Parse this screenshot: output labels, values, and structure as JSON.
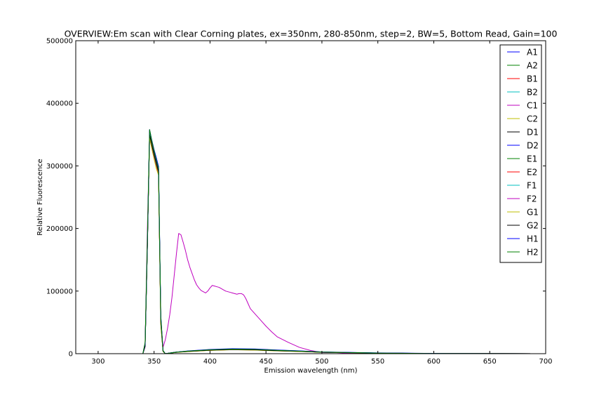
{
  "colors": {
    "A1": "#0000ff",
    "A2": "#008000",
    "B1": "#ff0000",
    "B2": "#00bfbf",
    "C1": "#bf00bf",
    "C2": "#bfbf00",
    "D1": "#000000",
    "D2": "#0000ff",
    "E1": "#008000",
    "E2": "#ff0000",
    "F1": "#00bfbf",
    "F2": "#bf00bf",
    "G1": "#bfbf00",
    "G2": "#000000",
    "H1": "#0000ff",
    "H2": "#008000"
  },
  "chart_data": {
    "type": "line",
    "title": "OVERVIEW:Em scan with Clear Corning plates, ex=350nm, 280-850nm, step=2, BW=5, Bottom Read, Gain=100",
    "xlabel": "Emission wavelength (nm)",
    "ylabel": "Relative Fluorescence",
    "xlim": [
      280,
      700
    ],
    "ylim": [
      0,
      500000
    ],
    "xticks": [
      "300",
      "350",
      "400",
      "450",
      "500",
      "550",
      "600",
      "650",
      "700"
    ],
    "yticks": [
      "0",
      "100000",
      "200000",
      "300000",
      "400000",
      "500000"
    ],
    "grid": false,
    "legend_position": "top-right",
    "series": [
      {
        "name": "A1",
        "x": [
          280,
          340,
          342,
          344,
          346,
          348,
          350,
          352,
          354,
          356,
          358,
          360,
          370,
          380,
          400,
          420,
          440,
          460,
          480,
          500,
          550,
          600,
          700
        ],
        "y": [
          0,
          0,
          15000,
          180000,
          358000,
          340000,
          325000,
          312000,
          298000,
          60000,
          5000,
          0,
          2500,
          4000,
          6000,
          7000,
          6500,
          5000,
          4000,
          2500,
          1000,
          300,
          0
        ]
      },
      {
        "name": "A2",
        "x": [
          280,
          340,
          342,
          344,
          346,
          348,
          350,
          352,
          354,
          356,
          358,
          360,
          370,
          380,
          400,
          420,
          440,
          460,
          480,
          500,
          550,
          600,
          700
        ],
        "y": [
          0,
          0,
          12000,
          170000,
          352000,
          336000,
          320000,
          306000,
          292000,
          55000,
          4500,
          0,
          2400,
          3800,
          5800,
          6800,
          6300,
          4900,
          3900,
          2400,
          900,
          300,
          0
        ]
      },
      {
        "name": "B1",
        "x": [
          280,
          340,
          342,
          344,
          346,
          348,
          350,
          352,
          354,
          356,
          358,
          360,
          370,
          380,
          400,
          420,
          440,
          460,
          480,
          500,
          550,
          600,
          700
        ],
        "y": [
          0,
          0,
          14000,
          175000,
          355000,
          334000,
          317000,
          301000,
          288000,
          50000,
          4000,
          0,
          2300,
          3600,
          5500,
          6500,
          6000,
          4700,
          3700,
          2300,
          900,
          250,
          0
        ]
      },
      {
        "name": "B2",
        "x": [
          280,
          340,
          342,
          344,
          346,
          348,
          350,
          352,
          354,
          356,
          358,
          360,
          370,
          380,
          400,
          420,
          440,
          460,
          480,
          500,
          550,
          600,
          700
        ],
        "y": [
          0,
          0,
          13000,
          172000,
          350000,
          333000,
          318000,
          304000,
          291000,
          52000,
          4200,
          0,
          2300,
          3700,
          5600,
          6600,
          6100,
          4800,
          3800,
          2300,
          900,
          250,
          0
        ]
      },
      {
        "name": "C1",
        "x": [
          280,
          340,
          342,
          344,
          346,
          348,
          350,
          352,
          354,
          356,
          358,
          360,
          370,
          380,
          400,
          420,
          440,
          460,
          480,
          500,
          550,
          600,
          700
        ],
        "y": [
          0,
          0,
          11000,
          168000,
          349000,
          331000,
          316000,
          302000,
          289000,
          51000,
          4100,
          0,
          2200,
          3500,
          5400,
          6400,
          5900,
          4600,
          3600,
          2200,
          850,
          250,
          0
        ]
      },
      {
        "name": "C2",
        "x": [
          280,
          340,
          342,
          344,
          346,
          348,
          350,
          352,
          354,
          356,
          358,
          360,
          370,
          380,
          400,
          420,
          440,
          460,
          480,
          500,
          550,
          600,
          700
        ],
        "y": [
          0,
          0,
          16000,
          178000,
          346000,
          328000,
          312000,
          298000,
          286000,
          48000,
          3900,
          0,
          2100,
          3400,
          5300,
          6300,
          5800,
          4500,
          3500,
          2200,
          850,
          250,
          0
        ]
      },
      {
        "name": "D1",
        "x": [
          280,
          340,
          342,
          344,
          346,
          348,
          350,
          352,
          354,
          356,
          358,
          360,
          370,
          380,
          400,
          420,
          440,
          460,
          480,
          500,
          550,
          600,
          700
        ],
        "y": [
          0,
          0,
          12500,
          171000,
          351000,
          335000,
          319000,
          305000,
          290000,
          53000,
          4300,
          0,
          2300,
          3700,
          5700,
          6700,
          6200,
          4800,
          3800,
          2300,
          900,
          280,
          0
        ]
      },
      {
        "name": "D2",
        "x": [
          280,
          340,
          342,
          344,
          346,
          348,
          350,
          352,
          354,
          356,
          358,
          360,
          370,
          380,
          400,
          420,
          440,
          460,
          480,
          500,
          550,
          600,
          700
        ],
        "y": [
          0,
          0,
          15500,
          176000,
          356000,
          338000,
          322000,
          308000,
          295000,
          57000,
          4700,
          0,
          2500,
          4100,
          6400,
          7600,
          7200,
          5600,
          4300,
          2700,
          1100,
          350,
          0
        ]
      },
      {
        "name": "E1",
        "x": [
          280,
          340,
          342,
          344,
          346,
          348,
          350,
          352,
          354,
          356,
          358,
          360,
          370,
          380,
          400,
          420,
          440,
          460,
          480,
          500,
          550,
          600,
          700
        ],
        "y": [
          0,
          0,
          13500,
          173000,
          353000,
          337000,
          321000,
          307000,
          293000,
          54000,
          4400,
          0,
          2400,
          3800,
          5900,
          6900,
          6400,
          5000,
          3900,
          2400,
          950,
          300,
          0
        ]
      },
      {
        "name": "E2",
        "x": [
          280,
          340,
          342,
          344,
          346,
          348,
          350,
          352,
          354,
          356,
          358,
          360,
          370,
          380,
          400,
          420,
          440,
          460,
          480,
          500,
          550,
          600,
          700
        ],
        "y": [
          0,
          0,
          14500,
          174000,
          354000,
          336000,
          320000,
          303000,
          287000,
          49000,
          4000,
          0,
          2200,
          3600,
          5500,
          6500,
          6000,
          4700,
          3700,
          2300,
          900,
          270,
          0
        ]
      },
      {
        "name": "F1",
        "x": [
          280,
          340,
          342,
          344,
          346,
          348,
          350,
          352,
          354,
          356,
          358,
          360,
          370,
          380,
          400,
          420,
          440,
          460,
          480,
          500,
          550,
          600,
          700
        ],
        "y": [
          0,
          0,
          13000,
          172000,
          352000,
          334000,
          319000,
          305000,
          292000,
          53000,
          4300,
          0,
          2300,
          3700,
          5700,
          6700,
          6200,
          4800,
          3800,
          2300,
          900,
          280,
          0
        ]
      },
      {
        "name": "F2",
        "x": [
          280,
          340,
          342,
          344,
          346,
          348,
          350,
          352,
          354,
          356,
          358,
          360,
          362,
          364,
          366,
          368,
          370,
          372,
          374,
          376,
          378,
          380,
          382,
          384,
          386,
          388,
          390,
          392,
          394,
          396,
          398,
          400,
          402,
          404,
          406,
          408,
          410,
          412,
          414,
          416,
          418,
          420,
          422,
          424,
          426,
          428,
          430,
          432,
          434,
          436,
          440,
          445,
          450,
          455,
          460,
          470,
          480,
          490,
          500,
          510,
          520,
          540,
          560,
          600,
          650,
          700
        ],
        "y": [
          0,
          0,
          15000,
          200000,
          345000,
          330000,
          315000,
          302000,
          290000,
          55000,
          10000,
          22000,
          40000,
          62000,
          90000,
          125000,
          160000,
          192000,
          190000,
          178000,
          165000,
          150000,
          138000,
          128000,
          118000,
          110000,
          105000,
          101000,
          99000,
          97000,
          100000,
          105000,
          109000,
          108000,
          107000,
          106000,
          104000,
          102000,
          100000,
          99000,
          98000,
          97000,
          96000,
          95000,
          96000,
          96000,
          94000,
          88000,
          80000,
          72000,
          64000,
          54000,
          44000,
          35000,
          27000,
          18000,
          10000,
          5000,
          2000,
          2000,
          1000,
          500,
          200,
          0,
          0,
          0
        ]
      },
      {
        "name": "G1",
        "x": [
          280,
          340,
          342,
          344,
          346,
          348,
          350,
          352,
          354,
          356,
          358,
          360,
          370,
          380,
          400,
          420,
          440,
          460,
          480,
          500,
          550,
          600,
          700
        ],
        "y": [
          0,
          0,
          17000,
          180000,
          345000,
          327000,
          311000,
          296000,
          285000,
          47000,
          3800,
          0,
          2100,
          3400,
          5300,
          6300,
          5800,
          4500,
          3500,
          2200,
          850,
          250,
          0
        ]
      },
      {
        "name": "G2",
        "x": [
          280,
          340,
          342,
          344,
          346,
          348,
          350,
          352,
          354,
          356,
          358,
          360,
          370,
          380,
          400,
          420,
          440,
          460,
          480,
          500,
          550,
          600,
          700
        ],
        "y": [
          0,
          0,
          12000,
          170000,
          350000,
          333000,
          318000,
          304000,
          291000,
          52000,
          4200,
          0,
          2300,
          3700,
          5600,
          6600,
          6100,
          4800,
          3800,
          2300,
          900,
          250,
          0
        ]
      },
      {
        "name": "H1",
        "x": [
          280,
          340,
          342,
          344,
          346,
          348,
          350,
          352,
          354,
          356,
          358,
          360,
          370,
          380,
          400,
          420,
          440,
          460,
          480,
          500,
          550,
          600,
          700
        ],
        "y": [
          0,
          0,
          16000,
          177000,
          357000,
          341000,
          326000,
          313000,
          299000,
          61000,
          5200,
          0,
          2600,
          4300,
          6700,
          8000,
          7600,
          5900,
          4500,
          2800,
          1200,
          380,
          0
        ]
      },
      {
        "name": "H2",
        "x": [
          280,
          340,
          342,
          344,
          346,
          348,
          350,
          352,
          354,
          356,
          358,
          360,
          370,
          380,
          400,
          420,
          440,
          460,
          480,
          500,
          550,
          600,
          700
        ],
        "y": [
          0,
          0,
          18000,
          182000,
          358000,
          340000,
          324000,
          309000,
          296000,
          58000,
          4800,
          0,
          2500,
          4000,
          6200,
          7300,
          6800,
          5300,
          4100,
          2600,
          1000,
          320,
          0
        ]
      }
    ]
  }
}
